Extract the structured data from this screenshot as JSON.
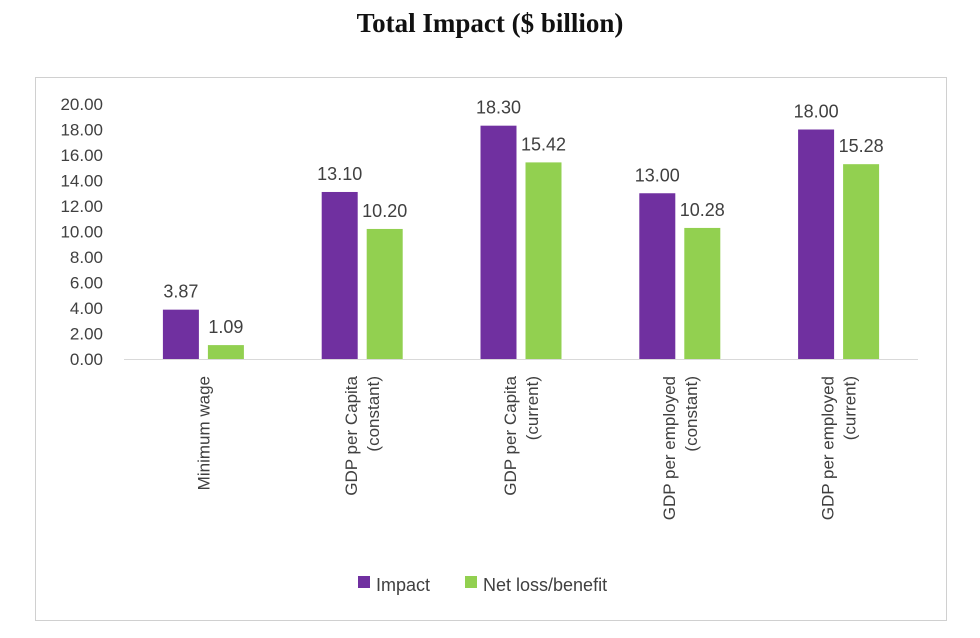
{
  "chart_data": {
    "type": "bar",
    "title": "Total Impact ($ billion)",
    "categories": [
      [
        "Minimum wage"
      ],
      [
        "GDP per Capita",
        "(constant)"
      ],
      [
        "GDP per Capita",
        "(current)"
      ],
      [
        "GDP per employed",
        "(constant)"
      ],
      [
        "GDP per employed",
        "(current)"
      ]
    ],
    "series": [
      {
        "name": "Impact",
        "color": "#7030a0",
        "values": [
          3.87,
          13.1,
          18.3,
          13.0,
          18.0
        ]
      },
      {
        "name": "Net loss/benefit",
        "color": "#92d050",
        "values": [
          1.09,
          10.2,
          15.42,
          10.28,
          15.28
        ]
      }
    ],
    "yticks": [
      "0.00",
      "2.00",
      "4.00",
      "6.00",
      "8.00",
      "10.00",
      "12.00",
      "14.00",
      "16.00",
      "18.00",
      "20.00"
    ],
    "ylim": [
      0,
      20
    ],
    "data_label_format": "2 decimals",
    "grid": false,
    "legend_position": "bottom"
  }
}
